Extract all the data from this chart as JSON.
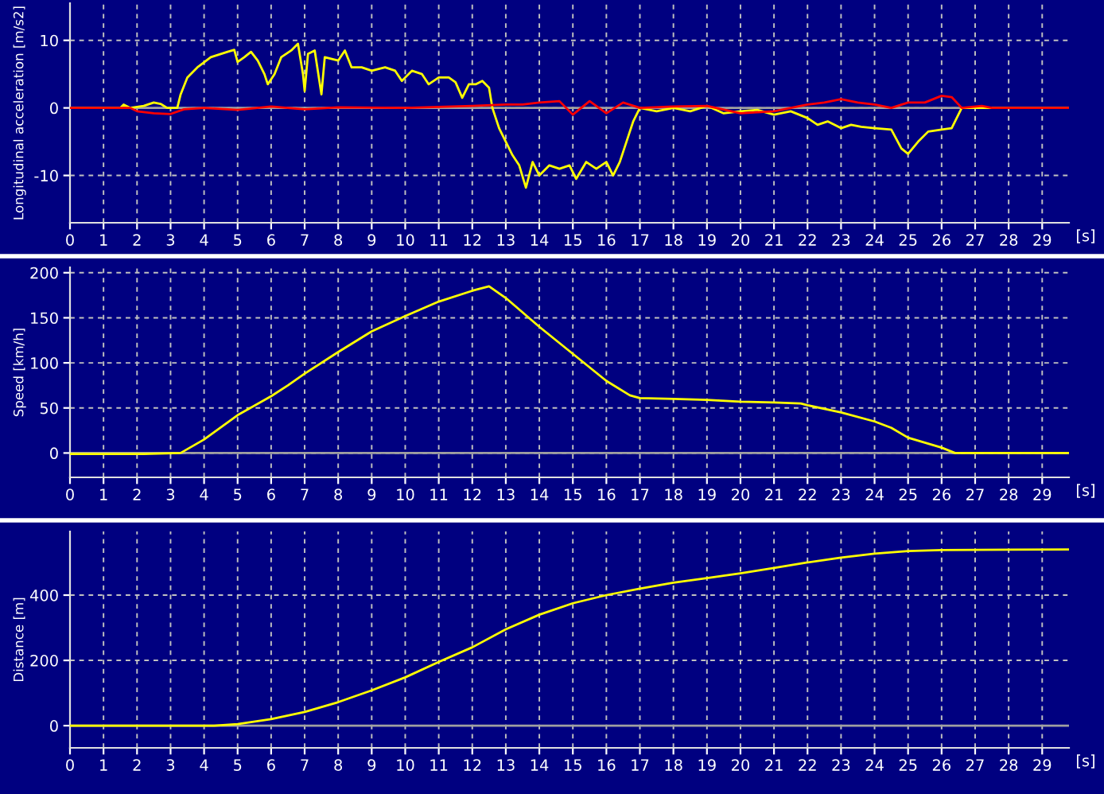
{
  "chart_data": [
    {
      "type": "line",
      "ylabel": "Longitudinal acceleration [m/s2]",
      "xlabel": "[s]",
      "xlim": [
        0,
        29.8
      ],
      "xticks": [
        0,
        1,
        2,
        3,
        4,
        5,
        6,
        7,
        8,
        9,
        10,
        11,
        12,
        13,
        14,
        15,
        16,
        17,
        18,
        19,
        20,
        21,
        22,
        23,
        24,
        25,
        26,
        27,
        28,
        29
      ],
      "ylim": [
        -17,
        15.5
      ],
      "yticks": [
        -10,
        0,
        10
      ],
      "grid": true,
      "legend": false,
      "marker": "none",
      "line_style": "solid",
      "ref_lines": [
        {
          "axis": "y",
          "value": 0,
          "color": "#a0a0a0"
        }
      ],
      "series": [
        {
          "color": "#ffff00",
          "x": [
            0,
            1.5,
            1.6,
            1.8,
            2.2,
            2.5,
            2.7,
            2.9,
            3.2,
            3.3,
            3.5,
            3.8,
            4.2,
            4.7,
            4.9,
            5.0,
            5.2,
            5.4,
            5.6,
            5.8,
            5.9,
            6.1,
            6.3,
            6.6,
            6.8,
            6.95,
            7.0,
            7.1,
            7.3,
            7.5,
            7.6,
            8.0,
            8.2,
            8.4,
            8.7,
            9.0,
            9.4,
            9.7,
            9.9,
            10.2,
            10.5,
            10.7,
            11.0,
            11.3,
            11.5,
            11.7,
            11.9,
            12.1,
            12.3,
            12.5,
            12.6,
            12.8,
            13.0,
            13.2,
            13.4,
            13.6,
            13.8,
            14.0,
            14.3,
            14.6,
            14.9,
            15.1,
            15.4,
            15.7,
            16.0,
            16.2,
            16.4,
            16.6,
            16.8,
            17.0,
            17.5,
            18,
            18.5,
            19.0,
            19.5,
            20,
            20.5,
            21,
            21.5,
            22,
            22.3,
            22.6,
            23,
            23.3,
            23.6,
            24,
            24.5,
            24.8,
            25.0,
            25.3,
            25.6,
            26.0,
            26.3,
            26.5,
            26.6,
            29.8
          ],
          "values": [
            0,
            0,
            0.5,
            0,
            0.3,
            0.8,
            0.6,
            0,
            0,
            2,
            4.5,
            6,
            7.5,
            8.3,
            8.6,
            6.8,
            7.5,
            8.3,
            7,
            5,
            3.5,
            5,
            7.5,
            8.5,
            9.5,
            5,
            2.5,
            8,
            8.5,
            2,
            7.5,
            7,
            8.5,
            6,
            6,
            5.5,
            6,
            5.5,
            4,
            5.5,
            5,
            3.5,
            4.5,
            4.5,
            3.8,
            1.5,
            3.5,
            3.5,
            4,
            3,
            0,
            -3,
            -5,
            -7,
            -8.5,
            -11.8,
            -8,
            -10,
            -8.5,
            -9,
            -8.5,
            -10.5,
            -8,
            -9,
            -8,
            -10,
            -8,
            -5,
            -2,
            0,
            -0.5,
            0,
            -0.5,
            0.3,
            -0.8,
            -0.5,
            -0.3,
            -1,
            -0.5,
            -1.5,
            -2.5,
            -2,
            -3,
            -2.5,
            -2.8,
            -3,
            -3.2,
            -6,
            -6.8,
            -5,
            -3.5,
            -3.2,
            -3,
            -1,
            0,
            0
          ]
        },
        {
          "color": "#ff0000",
          "x": [
            0,
            1.8,
            2.0,
            2.5,
            3.0,
            3.4,
            4,
            5,
            6,
            7,
            8,
            10,
            12,
            13,
            13.5,
            14,
            14.6,
            15,
            15.5,
            16,
            16.5,
            17,
            18,
            19,
            20,
            21,
            22,
            22.5,
            23,
            23.5,
            24,
            24.5,
            25,
            25.5,
            26,
            26.3,
            26.6,
            27.2,
            27.5,
            29.8
          ],
          "values": [
            0,
            0,
            -0.5,
            -0.8,
            -0.9,
            -0.2,
            0,
            -0.3,
            0.2,
            -0.2,
            0.1,
            0,
            0.3,
            0.5,
            0.5,
            0.8,
            1,
            -1,
            1,
            -0.8,
            0.8,
            0,
            0.2,
            0.3,
            -0.8,
            -0.5,
            0.5,
            0.8,
            1.3,
            0.8,
            0.5,
            0,
            0.8,
            0.8,
            1.8,
            1.6,
            0,
            0.3,
            0,
            0
          ]
        }
      ]
    },
    {
      "type": "line",
      "ylabel": "Speed [km/h]",
      "xlabel": "[s]",
      "xlim": [
        0,
        29.8
      ],
      "xticks": [
        0,
        1,
        2,
        3,
        4,
        5,
        6,
        7,
        8,
        9,
        10,
        11,
        12,
        13,
        14,
        15,
        16,
        17,
        18,
        19,
        20,
        21,
        22,
        23,
        24,
        25,
        26,
        27,
        28,
        29
      ],
      "ylim": [
        -27,
        206
      ],
      "yticks": [
        0,
        50,
        100,
        150,
        200
      ],
      "grid": true,
      "legend": false,
      "marker": "none",
      "line_style": "solid",
      "ref_lines": [
        {
          "axis": "y",
          "value": 0,
          "color": "#a0a0a0"
        }
      ],
      "series": [
        {
          "color": "#ffff00",
          "x": [
            0,
            2.2,
            3.3,
            4,
            5,
            6,
            6.5,
            7,
            8,
            9,
            10,
            11,
            12,
            12.5,
            13,
            14,
            15,
            16,
            16.7,
            17,
            18,
            19,
            20,
            21,
            21.8,
            22,
            23,
            24,
            24.5,
            25,
            26,
            26.4,
            29.8
          ],
          "values": [
            -1,
            -1,
            0,
            15,
            42,
            63,
            75,
            88,
            112,
            135,
            152,
            168,
            180,
            185,
            172,
            140,
            110,
            80,
            64,
            61,
            60,
            59,
            57,
            56,
            55,
            53,
            45,
            35,
            28,
            17,
            6,
            0,
            0
          ]
        }
      ]
    },
    {
      "type": "line",
      "ylabel": "Distance [m]",
      "xlabel": "[s]",
      "xlim": [
        0,
        29.8
      ],
      "xticks": [
        0,
        1,
        2,
        3,
        4,
        5,
        6,
        7,
        8,
        9,
        10,
        11,
        12,
        13,
        14,
        15,
        16,
        17,
        18,
        19,
        20,
        21,
        22,
        23,
        24,
        25,
        26,
        27,
        28,
        29
      ],
      "ylim": [
        -68,
        595
      ],
      "yticks": [
        0,
        200,
        400
      ],
      "grid": true,
      "legend": false,
      "marker": "none",
      "line_style": "solid",
      "ref_lines": [
        {
          "axis": "y",
          "value": 0,
          "color": "#a0a0a0"
        }
      ],
      "series": [
        {
          "color": "#ffff00",
          "x": [
            0,
            4.3,
            5,
            6,
            7,
            8,
            9,
            10,
            11,
            12,
            13,
            14,
            15,
            16,
            17,
            18,
            19,
            20,
            21,
            22,
            23,
            24,
            25,
            26,
            29.8
          ],
          "values": [
            0,
            0,
            5,
            20,
            42,
            72,
            108,
            148,
            195,
            240,
            295,
            340,
            375,
            400,
            420,
            438,
            452,
            467,
            483,
            500,
            515,
            527,
            535,
            538,
            540
          ]
        }
      ]
    }
  ]
}
